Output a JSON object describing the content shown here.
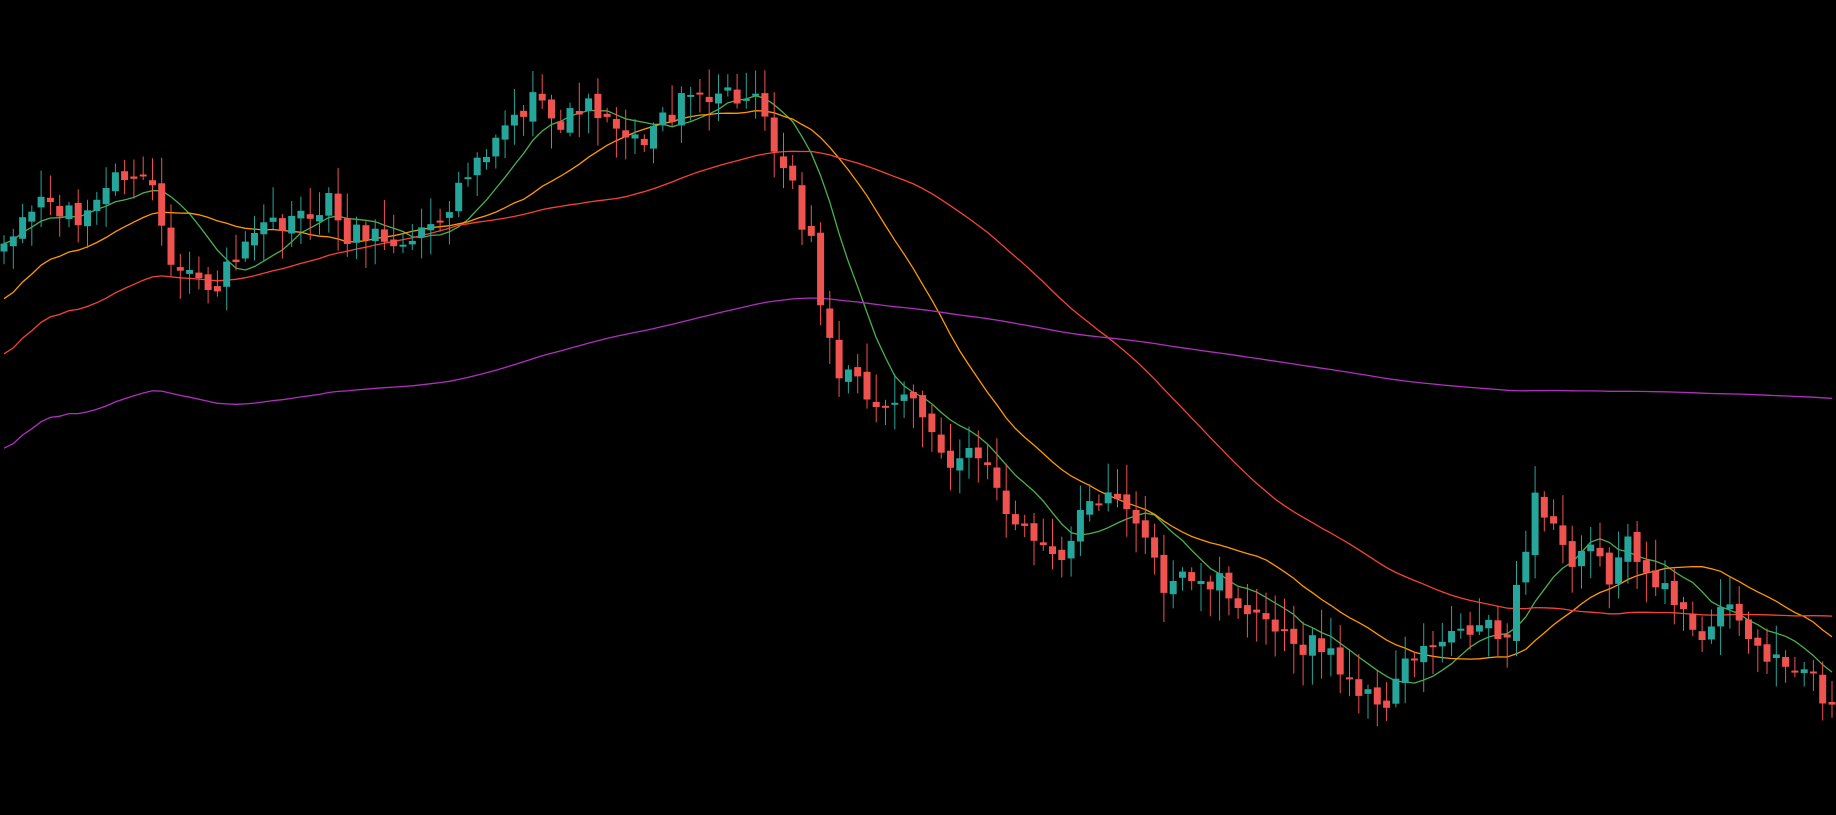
{
  "chart_data": {
    "type": "candlestick",
    "title": "",
    "xlabel": "",
    "ylabel": "",
    "grid": false,
    "legend": "none",
    "ylim": [
      0,
      1000
    ],
    "colors": {
      "background": "#000000",
      "up": "#26a69a",
      "down": "#ef5350",
      "ma_fast": "#4caf50",
      "ma_mid": "#ff9800",
      "ma_slow": "#f44336",
      "ma_long": "#b02fbf"
    },
    "anchors": [
      [
        0,
        700
      ],
      [
        2,
        745
      ],
      [
        4,
        770
      ],
      [
        6,
        755
      ],
      [
        8,
        740
      ],
      [
        10,
        775
      ],
      [
        13,
        805
      ],
      [
        16,
        790
      ],
      [
        18,
        700
      ],
      [
        20,
        680
      ],
      [
        22,
        650
      ],
      [
        25,
        690
      ],
      [
        28,
        730
      ],
      [
        30,
        735
      ],
      [
        32,
        745
      ],
      [
        35,
        770
      ],
      [
        37,
        720
      ],
      [
        39,
        730
      ],
      [
        41,
        720
      ],
      [
        43,
        710
      ],
      [
        45,
        730
      ],
      [
        48,
        765
      ],
      [
        50,
        800
      ],
      [
        52,
        820
      ],
      [
        54,
        860
      ],
      [
        56,
        880
      ],
      [
        58,
        910
      ],
      [
        60,
        860
      ],
      [
        62,
        890
      ],
      [
        64,
        880
      ],
      [
        66,
        850
      ],
      [
        68,
        840
      ],
      [
        70,
        860
      ],
      [
        72,
        880
      ],
      [
        74,
        900
      ],
      [
        77,
        910
      ],
      [
        79,
        900
      ],
      [
        81,
        890
      ],
      [
        82,
        860
      ],
      [
        84,
        800
      ],
      [
        85,
        780
      ],
      [
        86,
        740
      ],
      [
        87,
        720
      ],
      [
        88,
        640
      ],
      [
        89,
        590
      ],
      [
        90,
        550
      ],
      [
        92,
        530
      ],
      [
        94,
        510
      ],
      [
        96,
        515
      ],
      [
        98,
        505
      ],
      [
        100,
        470
      ],
      [
        102,
        440
      ],
      [
        104,
        450
      ],
      [
        106,
        420
      ],
      [
        108,
        370
      ],
      [
        110,
        360
      ],
      [
        112,
        330
      ],
      [
        114,
        320
      ],
      [
        116,
        370
      ],
      [
        118,
        390
      ],
      [
        120,
        380
      ],
      [
        122,
        350
      ],
      [
        124,
        320
      ],
      [
        125,
        280
      ],
      [
        127,
        300
      ],
      [
        129,
        275
      ],
      [
        131,
        280
      ],
      [
        133,
        260
      ],
      [
        135,
        230
      ],
      [
        137,
        220
      ],
      [
        139,
        200
      ],
      [
        141,
        210
      ],
      [
        143,
        190
      ],
      [
        145,
        160
      ],
      [
        147,
        135
      ],
      [
        149,
        130
      ],
      [
        150,
        160
      ],
      [
        152,
        190
      ],
      [
        154,
        200
      ],
      [
        156,
        210
      ],
      [
        158,
        220
      ],
      [
        160,
        230
      ],
      [
        162,
        200
      ],
      [
        163,
        280
      ],
      [
        165,
        390
      ],
      [
        167,
        360
      ],
      [
        169,
        300
      ],
      [
        171,
        320
      ],
      [
        173,
        290
      ],
      [
        175,
        330
      ],
      [
        177,
        310
      ],
      [
        179,
        270
      ],
      [
        181,
        240
      ],
      [
        183,
        220
      ],
      [
        185,
        250
      ],
      [
        187,
        230
      ],
      [
        189,
        200
      ],
      [
        191,
        180
      ],
      [
        193,
        170
      ],
      [
        195,
        160
      ],
      [
        197,
        120
      ]
    ],
    "moving_averages": [
      {
        "period": 9,
        "color_key": "ma_fast"
      },
      {
        "period": 21,
        "color_key": "ma_mid"
      },
      {
        "period": 50,
        "color_key": "ma_slow"
      },
      {
        "period": 200,
        "color_key": "ma_long"
      }
    ]
  }
}
